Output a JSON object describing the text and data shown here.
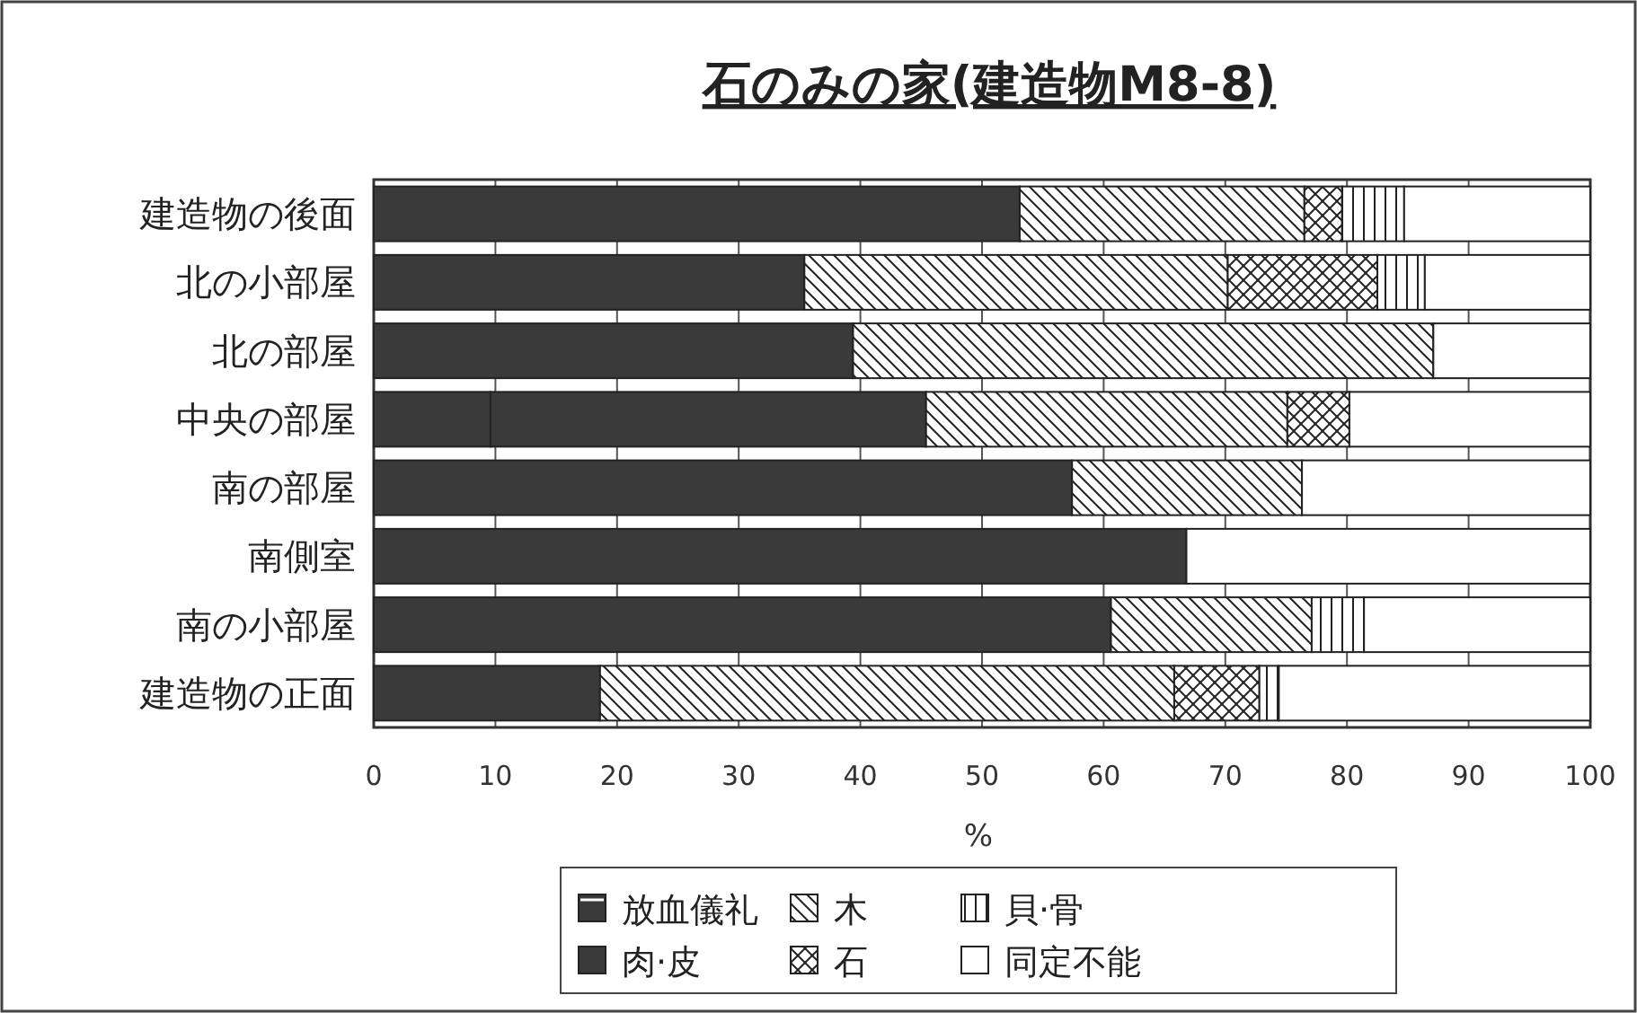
{
  "chart_data": {
    "type": "bar",
    "orientation": "horizontal",
    "stacked": true,
    "title": "石のみの家(建造物M8-8)",
    "xlabel": "%",
    "categories": [
      "建造物の後面",
      "北の小部屋",
      "北の部屋",
      "中央の部屋",
      "南の部屋",
      "南側室",
      "南の小部屋",
      "建造物の正面"
    ],
    "series": [
      {
        "name": "放血儀礼",
        "color": "#3a3a3a",
        "values": [
          0,
          0,
          0,
          9.6,
          0,
          0,
          0,
          0
        ]
      },
      {
        "name": "肉·皮",
        "color": "#3a3a3a",
        "values": [
          53.1,
          35.4,
          39.4,
          35.8,
          57.4,
          66.8,
          60.6,
          18.6
        ]
      },
      {
        "name": "木",
        "color": "#222222",
        "values": [
          23.4,
          34.8,
          47.7,
          29.7,
          18.9,
          0,
          16.5,
          47.2
        ]
      },
      {
        "name": "石",
        "color": "#222222",
        "values": [
          3.1,
          12.3,
          0,
          5.1,
          0,
          0,
          0,
          7.0
        ]
      },
      {
        "name": "貝·骨",
        "color": "#222222",
        "values": [
          5.1,
          3.9,
          0,
          0,
          0,
          0,
          4.3,
          1.6
        ]
      },
      {
        "name": "同定不能",
        "color": "#ffffff",
        "values": [
          15.3,
          13.6,
          12.9,
          19.8,
          23.7,
          33.2,
          18.6,
          25.6
        ]
      }
    ],
    "xlim": [
      0,
      100
    ],
    "xticks": [
      0,
      10,
      20,
      30,
      40,
      50,
      60,
      70,
      80,
      90,
      100
    ],
    "grid": "x",
    "legend": "bottom"
  }
}
